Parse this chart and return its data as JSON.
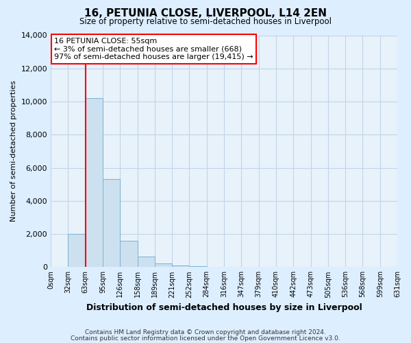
{
  "title": "16, PETUNIA CLOSE, LIVERPOOL, L14 2EN",
  "subtitle": "Size of property relative to semi-detached houses in Liverpool",
  "xlabel": "Distribution of semi-detached houses by size in Liverpool",
  "ylabel": "Number of semi-detached properties",
  "bin_labels": [
    "0sqm",
    "32sqm",
    "63sqm",
    "95sqm",
    "126sqm",
    "158sqm",
    "189sqm",
    "221sqm",
    "252sqm",
    "284sqm",
    "316sqm",
    "347sqm",
    "379sqm",
    "410sqm",
    "442sqm",
    "473sqm",
    "505sqm",
    "536sqm",
    "568sqm",
    "599sqm",
    "631sqm"
  ],
  "bar_heights": [
    0,
    2000,
    10200,
    5300,
    1600,
    650,
    230,
    100,
    50,
    30,
    10,
    0,
    0,
    0,
    0,
    0,
    0,
    0,
    0,
    0
  ],
  "bar_color": "#cde0f0",
  "bar_edge_color": "#7ab3d4",
  "vline_color": "red",
  "annotation_title": "16 PETUNIA CLOSE: 55sqm",
  "annotation_line1": "← 3% of semi-detached houses are smaller (668)",
  "annotation_line2": "97% of semi-detached houses are larger (19,415) →",
  "annotation_box_color": "white",
  "annotation_box_edge": "red",
  "ylim": [
    0,
    14000
  ],
  "yticks": [
    0,
    2000,
    4000,
    6000,
    8000,
    10000,
    12000,
    14000
  ],
  "footer1": "Contains HM Land Registry data © Crown copyright and database right 2024.",
  "footer2": "Contains public sector information licensed under the Open Government Licence v3.0.",
  "background_color": "#ddeeff",
  "grid_color": "#c0d4e8",
  "plot_bg_color": "#e8f2fb"
}
